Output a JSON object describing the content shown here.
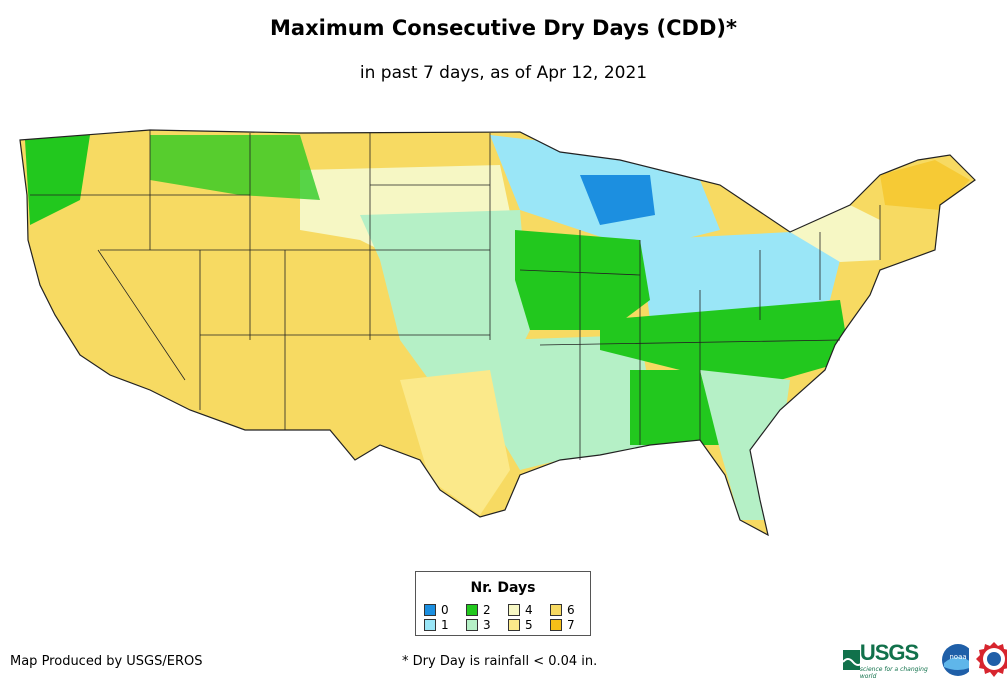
{
  "header": {
    "title": "Maximum Consecutive Dry Days (CDD)*",
    "subtitle": "in past 7 days, as of Apr 12, 2021"
  },
  "legend": {
    "title": "Nr. Days",
    "items": [
      {
        "label": "0",
        "color": "#1c8fe0"
      },
      {
        "label": "1",
        "color": "#9ae6f7"
      },
      {
        "label": "2",
        "color": "#22c81e"
      },
      {
        "label": "3",
        "color": "#b5f0c6"
      },
      {
        "label": "4",
        "color": "#f6f7c4"
      },
      {
        "label": "5",
        "color": "#fbe98a"
      },
      {
        "label": "6",
        "color": "#f7da62"
      },
      {
        "label": "7",
        "color": "#f5bf18"
      }
    ]
  },
  "footer": {
    "credit": "Map Produced by USGS/EROS",
    "footnote": "* Dry Day is rainfall < 0.04 in.",
    "usgs_logo": "USGS",
    "usgs_tagline": "science for a changing world",
    "noaa_logo": "noaa"
  }
}
